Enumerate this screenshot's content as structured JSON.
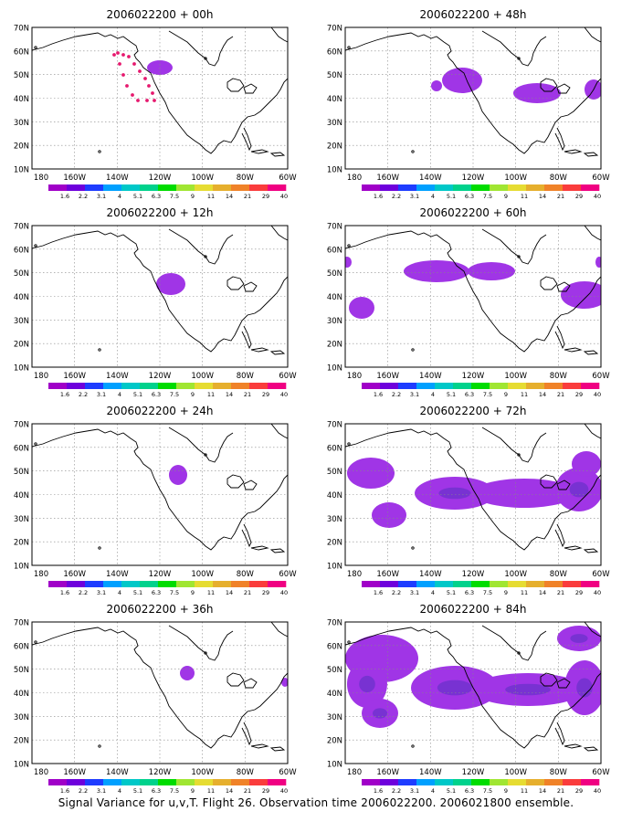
{
  "panels": [
    {
      "title": "2006022200 + 00h",
      "label_color": "#000000"
    },
    {
      "title": "2006022200 + 12h"
    },
    {
      "title": "2006022200 + 24h"
    },
    {
      "title": "2006022200 + 36h"
    },
    {
      "title": "2006022200 + 48h"
    },
    {
      "title": "2006022200 + 60h"
    },
    {
      "title": "2006022200 + 72h"
    },
    {
      "title": "2006022200 + 84h"
    }
  ],
  "lat_labels": [
    "70N",
    "60N",
    "50N",
    "40N",
    "30N",
    "20N",
    "10N"
  ],
  "lon_labels": [
    "180",
    "160W",
    "140W",
    "120W",
    "100W",
    "80W",
    "60W"
  ],
  "colorbar": {
    "labels": [
      "1.6",
      "2.2",
      "3.1",
      "4",
      "5.1",
      "6.3",
      "7.5",
      "9",
      "11",
      "14",
      "21",
      "29",
      "40"
    ],
    "colors": [
      "#a000c8",
      "#6e00dc",
      "#1e3cff",
      "#00a0ff",
      "#00c8c8",
      "#00d28c",
      "#00dc00",
      "#a0e632",
      "#e6dc32",
      "#e6af2d",
      "#f08228",
      "#fa3c3c",
      "#f00082"
    ]
  },
  "colors": {
    "shade_light": "#a035e6",
    "shade_dark": "#7832d2",
    "flight_track": "#e6196e"
  },
  "footer": "Signal Variance for u,v,T. Flight 26. Observation time 2006022200. 2006021800 ensemble."
}
